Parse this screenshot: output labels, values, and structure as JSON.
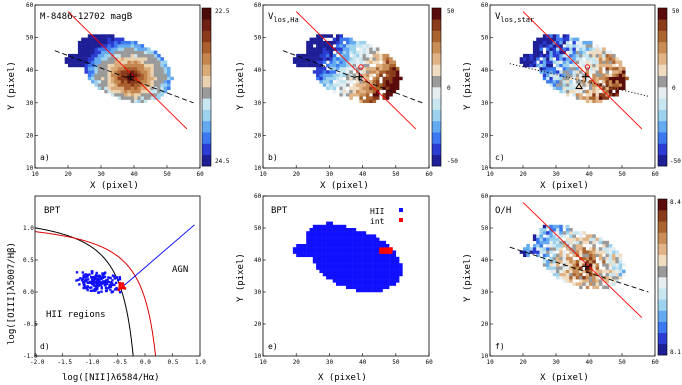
{
  "figure": {
    "panels": [
      {
        "id": "a",
        "label": "a)",
        "title": "M-8486-12702  magB",
        "title_sub": "",
        "colorbar": {
          "top": "22.5",
          "bottom": "24.5",
          "mid": ""
        },
        "xlabel": "X  (pixel)",
        "ylabel": "Y  (pixel)"
      },
      {
        "id": "b",
        "label": "b)",
        "title": "V",
        "title_sub": "los,Ha",
        "colorbar": {
          "top": "50",
          "bottom": "-50",
          "mid": "0"
        },
        "xlabel": "X  (pixel)",
        "ylabel": "Y  (pixel)"
      },
      {
        "id": "c",
        "label": "c)",
        "title": "V",
        "title_sub": "los,star",
        "colorbar": {
          "top": "50",
          "bottom": "-50",
          "mid": "0"
        },
        "xlabel": "X  (pixel)",
        "ylabel": "Y  (pixel)"
      },
      {
        "id": "d",
        "label": "d)",
        "title": "BPT",
        "xlabel": "log([NII]λ6584/Hα)",
        "ylabel": "log([OIII]λ5007/Hβ)",
        "region_hii": "HII regions",
        "region_agn": "AGN"
      },
      {
        "id": "e",
        "label": "e)",
        "title": "BPT",
        "legend": [
          "HII",
          "int"
        ],
        "xlabel": "X  (pixel)",
        "ylabel": "Y  (pixel)"
      },
      {
        "id": "f",
        "label": "f)",
        "title": "O/H",
        "colorbar": {
          "top": "8.4",
          "bottom": "8.1",
          "mid": ""
        },
        "xlabel": "X  (pixel)",
        "ylabel": "Y  (pixel)"
      }
    ],
    "map_axes": {
      "xticks": [
        "10",
        "20",
        "30",
        "40",
        "50",
        "60"
      ],
      "yticks": [
        "10",
        "20",
        "30",
        "40",
        "50",
        "60"
      ],
      "xlim": [
        10,
        60
      ],
      "ylim": [
        10,
        60
      ]
    },
    "bpt_axes": {
      "xticks": [
        "-2.0",
        "-1.5",
        "-1.0",
        "-0.5",
        "0.0",
        "0.5",
        "1.0"
      ],
      "yticks": [
        "-1.0",
        "-0.5",
        "0.0",
        "0.5",
        "1.0"
      ],
      "xlim": [
        -2.0,
        1.0
      ],
      "ylim": [
        -1.0,
        1.5
      ]
    },
    "colors": {
      "hii": "#1010ff",
      "int": "#ff0000",
      "kauffmann": "#000000",
      "kewley": "#e00000",
      "agn_line": "#0000ff"
    }
  }
}
